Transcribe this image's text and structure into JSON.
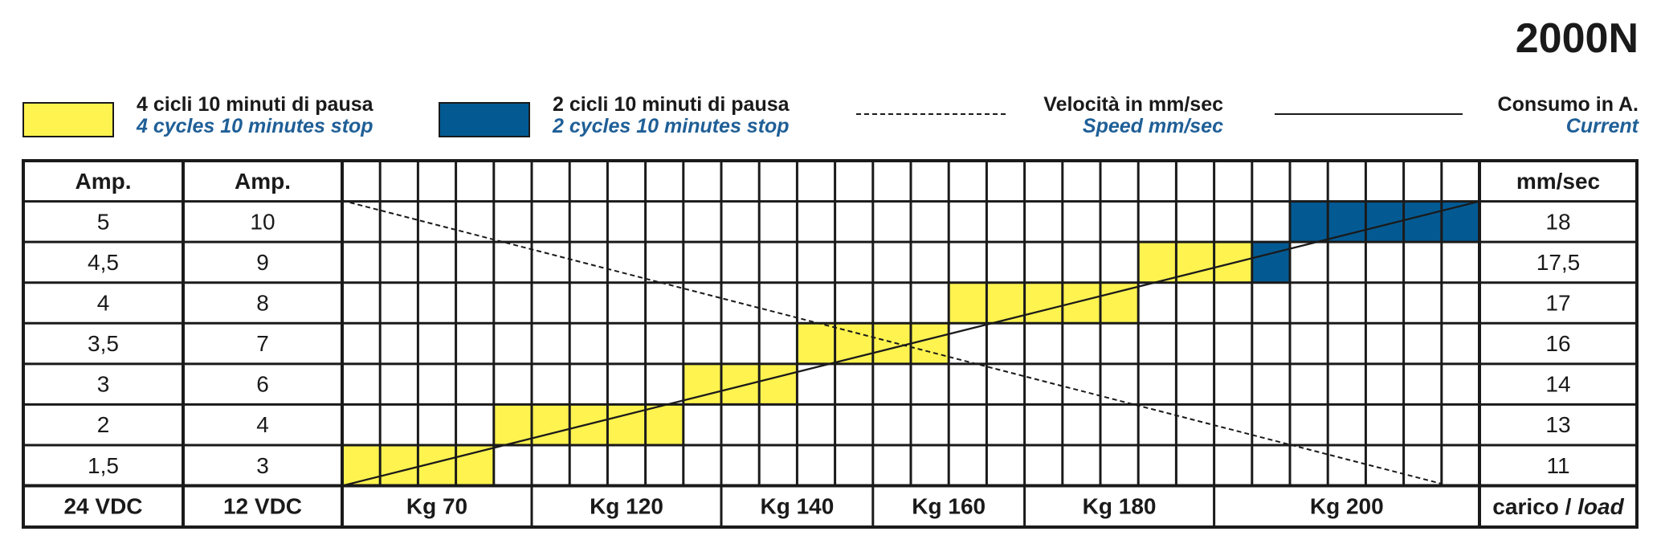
{
  "title": "2000N",
  "legend": {
    "yellow": {
      "line1": "4 cicli 10 minuti di pausa",
      "line2": "4 cycles 10 minutes stop",
      "color": "#fff34f"
    },
    "blue": {
      "line1": "2 cicli 10 minuti di pausa",
      "line2": "2 cycles 10 minutes stop",
      "color": "#035a93"
    },
    "speed": {
      "line1": "Velocità in mm/sec",
      "line2": "Speed mm/sec"
    },
    "current": {
      "line1": "Consumo in A.",
      "line2": "Current"
    }
  },
  "chart_data": {
    "type": "table",
    "title": "2000N",
    "columns": {
      "amp24_header": "Amp.",
      "amp12_header": "Amp.",
      "speed_header": "mm/sec",
      "amp24_footer": "24 VDC",
      "amp12_footer": "12 VDC",
      "load_footer_it": "carico / ",
      "load_footer_en": "load"
    },
    "rows": [
      {
        "amp_24vdc": "5",
        "amp_12vdc": "10",
        "speed": "18"
      },
      {
        "amp_24vdc": "4,5",
        "amp_12vdc": "9",
        "speed": "17,5"
      },
      {
        "amp_24vdc": "4",
        "amp_12vdc": "8",
        "speed": "17"
      },
      {
        "amp_24vdc": "3,5",
        "amp_12vdc": "7",
        "speed": "16"
      },
      {
        "amp_24vdc": "3",
        "amp_12vdc": "6",
        "speed": "14"
      },
      {
        "amp_24vdc": "2",
        "amp_12vdc": "4",
        "speed": "13"
      },
      {
        "amp_24vdc": "1,5",
        "amp_12vdc": "3",
        "speed": "11"
      }
    ],
    "load_labels": [
      "Kg 70",
      "Kg 120",
      "Kg 140",
      "Kg 160",
      "Kg 180",
      "Kg 200"
    ],
    "load_label_spans": [
      5,
      5,
      4,
      4,
      5,
      7
    ],
    "grid_columns": 30,
    "duty_cells": [
      {
        "row": 6,
        "from": 0,
        "to": 3,
        "duty": "yellow"
      },
      {
        "row": 5,
        "from": 4,
        "to": 8,
        "duty": "yellow"
      },
      {
        "row": 4,
        "from": 9,
        "to": 11,
        "duty": "yellow"
      },
      {
        "row": 3,
        "from": 12,
        "to": 15,
        "duty": "yellow"
      },
      {
        "row": 2,
        "from": 16,
        "to": 20,
        "duty": "yellow"
      },
      {
        "row": 1,
        "from": 21,
        "to": 23,
        "duty": "yellow"
      },
      {
        "row": 1,
        "from": 24,
        "to": 24,
        "duty": "blue"
      },
      {
        "row": 0,
        "from": 25,
        "to": 29,
        "duty": "blue"
      }
    ],
    "current_line": {
      "from": {
        "row": 6,
        "col": 0
      },
      "to": {
        "row": 0,
        "col": 30
      },
      "style": "solid"
    },
    "speed_line": {
      "from": {
        "row": 0,
        "col": 0
      },
      "to": {
        "row": 6,
        "col": 29
      },
      "style": "dashed"
    }
  }
}
